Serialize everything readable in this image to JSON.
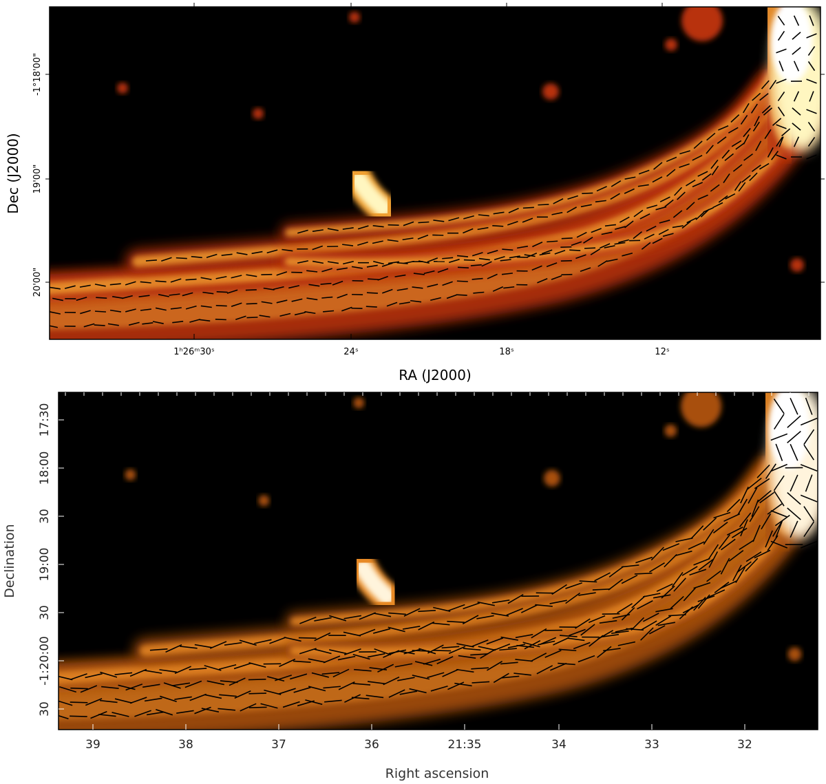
{
  "top_panel": {
    "x_label": "RA (J2000)",
    "y_label": "Dec (J2000)",
    "x_ticks": [
      "1ʰ26ᵐ30ˢ",
      "24ˢ",
      "18ˢ",
      "12ˢ"
    ],
    "y_ticks": [
      "-1°18'00\"",
      "19'00\"",
      "20'00\""
    ]
  },
  "bottom_panel": {
    "x_label": "Right ascension",
    "y_label": "Declination",
    "x_ticks": [
      "39",
      "38",
      "37",
      "36",
      "21:35",
      "34",
      "33",
      "32"
    ],
    "y_ticks": [
      "17:30",
      "18:00",
      "30",
      "19:00",
      "30",
      "-1:20:00",
      "30"
    ]
  }
}
